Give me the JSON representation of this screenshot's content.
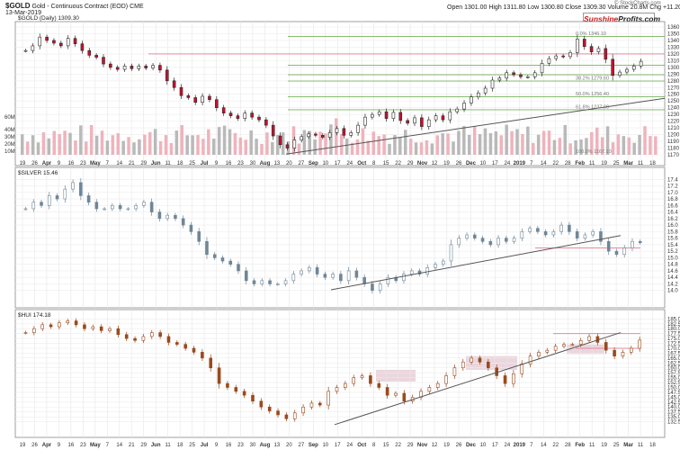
{
  "header": {
    "symbol": "$GOLD",
    "description": "Gold - Continuous Contract (EOD)",
    "exchange": "CME",
    "date": "13-Mar-2019",
    "ohlc": "Open 1301.00  High 1311.80  Low 1300.80  Close 1309.30  Volume 20.8M  Chg +11.20 (+0.86%)",
    "credit": "© StockCharts.com",
    "brand_part1": "Sunshine",
    "brand_part2": "Profits.com"
  },
  "colors": {
    "up": "#2a2a2a",
    "down": "#c8102e",
    "silver": "#6f8697",
    "hui": "#9a4a1c",
    "fib": "#76b35a",
    "resistance": "#e58a9a",
    "trend": "#555555",
    "zone": "#e3c5d0"
  },
  "chart_data": [
    {
      "type": "candlestick",
      "title": "$GOLD (Daily) 1309.30",
      "x_labels": [
        "19",
        "26",
        "Apr",
        "9",
        "16",
        "23",
        "May",
        "7",
        "14",
        "21",
        "29",
        "Jun",
        "11",
        "18",
        "25",
        "Jul",
        "9",
        "16",
        "23",
        "30",
        "Aug",
        "13",
        "20",
        "27",
        "Sep",
        "10",
        "17",
        "24",
        "Oct",
        "8",
        "15",
        "22",
        "29",
        "Nov",
        "12",
        "19",
        "26",
        "Dec",
        "10",
        "17",
        "24",
        "2019",
        "7",
        "14",
        "22",
        "28",
        "Feb",
        "11",
        "19",
        "25",
        "Mar",
        "11",
        "18"
      ],
      "ylim": [
        1170,
        1360
      ],
      "y_ticks": [
        1170,
        1180,
        1190,
        1200,
        1210,
        1220,
        1230,
        1240,
        1250,
        1260,
        1270,
        1280,
        1290,
        1300,
        1310,
        1320,
        1330,
        1340,
        1350,
        1360
      ],
      "close_path": [
        1325,
        1332,
        1345,
        1340,
        1336,
        1332,
        1343,
        1335,
        1325,
        1318,
        1315,
        1305,
        1300,
        1297,
        1302,
        1298,
        1302,
        1299,
        1303,
        1296,
        1280,
        1270,
        1258,
        1255,
        1248,
        1257,
        1252,
        1240,
        1232,
        1228,
        1224,
        1232,
        1226,
        1222,
        1214,
        1198,
        1185,
        1180,
        1192,
        1197,
        1201,
        1199,
        1196,
        1203,
        1209,
        1199,
        1203,
        1214,
        1226,
        1230,
        1234,
        1224,
        1233,
        1221,
        1217,
        1225,
        1212,
        1222,
        1228,
        1222,
        1234,
        1238,
        1247,
        1256,
        1262,
        1269,
        1281,
        1284,
        1292,
        1289,
        1286,
        1286,
        1292,
        1306,
        1313,
        1317,
        1316,
        1322,
        1342,
        1331,
        1323,
        1328,
        1312,
        1288,
        1293,
        1297,
        1302,
        1309
      ],
      "volume_ticks": [
        "10M",
        "20M",
        "30M",
        "40M",
        "60M"
      ],
      "fib_levels": [
        {
          "label": "61.8%  1237.00",
          "value": 1237.0
        },
        {
          "label": "50.0%  1256.40",
          "value": 1256.4
        },
        {
          "label": "38.2%  1279.60",
          "value": 1279.6
        },
        {
          "label": "0.0%  1346.10",
          "value": 1346.1
        },
        {
          "label": "",
          "value": 1303.0
        },
        {
          "label": "",
          "value": 1289.0
        }
      ],
      "fib_bottom_label": "100.0%  1167.10",
      "resistance_level": 1320,
      "trendline": {
        "from": [
          "Aug 16 2018",
          1171
        ],
        "to": [
          "Mar 13 2019",
          1254
        ]
      }
    },
    {
      "type": "candlestick",
      "title": "$SILVER 15.46",
      "ylim": [
        13.8,
        17.6
      ],
      "y_ticks": [
        14.0,
        14.2,
        14.4,
        14.6,
        14.8,
        15.0,
        15.2,
        15.4,
        15.6,
        15.8,
        16.0,
        16.2,
        16.4,
        16.6,
        16.8,
        17.0,
        17.2,
        17.4
      ],
      "close_path": [
        16.5,
        16.7,
        16.6,
        16.9,
        16.8,
        17.1,
        17.3,
        16.9,
        16.7,
        16.5,
        16.5,
        16.6,
        16.5,
        16.5,
        16.6,
        16.7,
        16.4,
        16.2,
        16.3,
        16.2,
        16.0,
        15.8,
        15.5,
        15.1,
        15.0,
        14.9,
        14.8,
        14.6,
        14.3,
        14.2,
        14.3,
        14.2,
        14.2,
        14.3,
        14.5,
        14.6,
        14.7,
        14.5,
        14.4,
        14.5,
        14.3,
        14.6,
        14.4,
        14.2,
        14.0,
        14.2,
        14.4,
        14.3,
        14.5,
        14.6,
        14.5,
        14.7,
        14.8,
        14.9,
        15.4,
        15.6,
        15.7,
        15.6,
        15.5,
        15.4,
        15.6,
        15.5,
        15.6,
        15.8,
        15.9,
        15.8,
        15.7,
        15.8,
        16.0,
        15.8,
        15.6,
        15.7,
        15.8,
        15.5,
        15.2,
        15.1,
        15.3,
        15.5,
        15.46
      ],
      "trendline": {
        "from": [
          "Sep 10 2018",
          14.02
        ],
        "to": [
          "Mar 13 2019",
          15.68
        ]
      },
      "support_level": 15.3
    },
    {
      "type": "candlestick",
      "title": "$HUI 174.18",
      "ylim": [
        130,
        187
      ],
      "y_ticks": [
        132.5,
        135.0,
        137.5,
        140.0,
        142.5,
        145.0,
        147.5,
        150.0,
        152.5,
        155.0,
        157.5,
        160.0,
        162.5,
        165.0,
        167.5,
        170.0,
        172.5,
        175.0,
        177.5,
        180.0,
        182.5,
        185.0
      ],
      "close_path": [
        178,
        180,
        182,
        181,
        183,
        184,
        182,
        180,
        181,
        179,
        180,
        177,
        175,
        174,
        176,
        178,
        176,
        173,
        172,
        170,
        168,
        165,
        160,
        152,
        150,
        148,
        146,
        143,
        140,
        138,
        136,
        134,
        137,
        140,
        142,
        141,
        148,
        150,
        152,
        155,
        156,
        152,
        150,
        146,
        147,
        143,
        145,
        148,
        150,
        152,
        156,
        160,
        163,
        165,
        163,
        160,
        156,
        152,
        157,
        162,
        166,
        168,
        169,
        171,
        172,
        172,
        174,
        176,
        173,
        169,
        166,
        168,
        170,
        174.18
      ],
      "zones": [
        {
          "from": "Oct 8 2018",
          "to": "Oct 26 2018",
          "low": 153,
          "high": 159
        },
        {
          "from": "Dec 4 2018",
          "to": "Dec 21 2018",
          "low": 159,
          "high": 166
        },
        {
          "from": "Jan 24 2019",
          "to": "Feb 8 2019",
          "low": 167,
          "high": 172
        }
      ],
      "resistance_levels": [
        177.5,
        170
      ],
      "trendline": {
        "from": [
          "Sep 11 2018",
          131
        ],
        "to": [
          "Mar 13 2019",
          178
        ]
      }
    }
  ]
}
